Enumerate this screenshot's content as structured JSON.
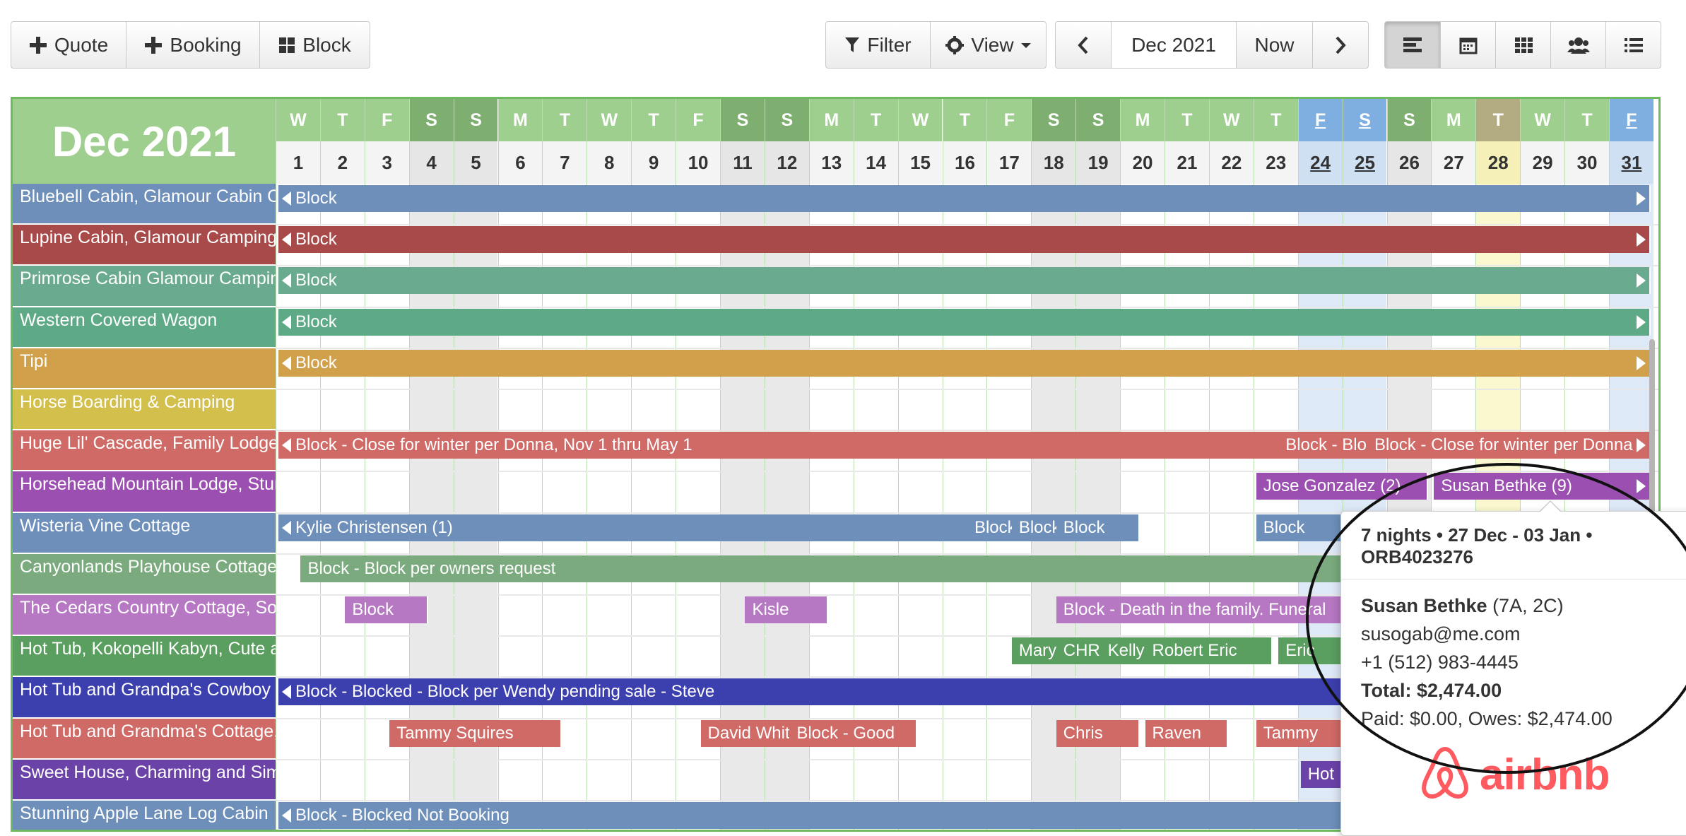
{
  "toolbar": {
    "quote_label": "Quote",
    "booking_label": "Booking",
    "block_label": "Block",
    "filter_label": "Filter",
    "view_label": "View",
    "month_label": "Dec 2021",
    "now_label": "Now"
  },
  "calendar": {
    "month_title": "Dec 2021",
    "days": [
      {
        "dow": "W",
        "num": "1"
      },
      {
        "dow": "T",
        "num": "2"
      },
      {
        "dow": "F",
        "num": "3"
      },
      {
        "dow": "S",
        "num": "4",
        "weekend": true
      },
      {
        "dow": "S",
        "num": "5",
        "weekend": true
      },
      {
        "dow": "M",
        "num": "6"
      },
      {
        "dow": "T",
        "num": "7"
      },
      {
        "dow": "W",
        "num": "8"
      },
      {
        "dow": "T",
        "num": "9"
      },
      {
        "dow": "F",
        "num": "10"
      },
      {
        "dow": "S",
        "num": "11",
        "weekend": true
      },
      {
        "dow": "S",
        "num": "12",
        "weekend": true
      },
      {
        "dow": "M",
        "num": "13"
      },
      {
        "dow": "T",
        "num": "14"
      },
      {
        "dow": "W",
        "num": "15"
      },
      {
        "dow": "T",
        "num": "16"
      },
      {
        "dow": "F",
        "num": "17"
      },
      {
        "dow": "S",
        "num": "18",
        "weekend": true
      },
      {
        "dow": "S",
        "num": "19",
        "weekend": true
      },
      {
        "dow": "M",
        "num": "20"
      },
      {
        "dow": "T",
        "num": "21"
      },
      {
        "dow": "W",
        "num": "22"
      },
      {
        "dow": "T",
        "num": "23"
      },
      {
        "dow": "F",
        "num": "24",
        "holiday": true
      },
      {
        "dow": "S",
        "num": "25",
        "holiday": true
      },
      {
        "dow": "S",
        "num": "26",
        "weekend": true
      },
      {
        "dow": "M",
        "num": "27"
      },
      {
        "dow": "T",
        "num": "28",
        "today": true
      },
      {
        "dow": "W",
        "num": "29"
      },
      {
        "dow": "T",
        "num": "30"
      },
      {
        "dow": "F",
        "num": "31",
        "holiday": true
      }
    ],
    "rows": [
      {
        "name": "Bluebell Cabin, Glamour Cabin Camping",
        "color": "#6d8fb9",
        "bars": [
          {
            "label": "Block",
            "start": 1,
            "end": 31,
            "left_arrow": true,
            "right_arrow": true
          }
        ]
      },
      {
        "name": "Lupine Cabin, Glamour Camping, Sleeps",
        "color": "#a84a4a",
        "bars": [
          {
            "label": "Block",
            "start": 1,
            "end": 31,
            "left_arrow": true,
            "right_arrow": true
          }
        ]
      },
      {
        "name": "Primrose Cabin Glamour Camping, Sleeps",
        "color": "#6aaa8e",
        "bars": [
          {
            "label": "Block",
            "start": 1,
            "end": 31,
            "left_arrow": true,
            "right_arrow": true
          }
        ]
      },
      {
        "name": "Western Covered Wagon",
        "color": "#5ea986",
        "bars": [
          {
            "label": "Block",
            "start": 1,
            "end": 31,
            "left_arrow": true,
            "right_arrow": true
          }
        ]
      },
      {
        "name": "Tipi",
        "color": "#d1a04a",
        "bars": [
          {
            "label": "Block",
            "start": 1,
            "end": 31,
            "left_arrow": true,
            "right_arrow": true
          }
        ]
      },
      {
        "name": "Horse Boarding & Camping",
        "color": "#d3bf4c",
        "bars": []
      },
      {
        "name": "Huge Lil' Cascade, Family Lodge, Sleeps",
        "color": "#cf6a66",
        "bars": [
          {
            "label": "Block - Close for winter per Donna, Nov 1 thru May 1",
            "start": 1,
            "end": 23.5,
            "left_arrow": true
          },
          {
            "label": "Block - Block",
            "start": 23.5,
            "end": 25.5
          },
          {
            "label": "Block - Close for winter per Donna",
            "start": 25.5,
            "end": 31,
            "right_arrow": true
          }
        ]
      },
      {
        "name": "Horsehead Mountain Lodge, Stunning",
        "color": "#9b4fb0",
        "bars": [
          {
            "label": "Jose Gonzalez (2)",
            "start": 23,
            "end": 26
          },
          {
            "label": "Susan Bethke (9)",
            "start": 27,
            "end": 31,
            "right_arrow": true
          }
        ]
      },
      {
        "name": "Wisteria Vine Cottage",
        "color": "#6d8fb9",
        "bars": [
          {
            "label": "Kylie Christensen (1)",
            "start": 1,
            "end": 16.5,
            "left_arrow": true
          },
          {
            "label": "Block",
            "start": 16.5,
            "end": 17.5
          },
          {
            "label": "Block",
            "start": 17.5,
            "end": 18.5
          },
          {
            "label": "Block",
            "start": 18.5,
            "end": 19.5
          },
          {
            "label": "Block",
            "start": 23,
            "end": 24.5
          }
        ]
      },
      {
        "name": "Canyonlands Playhouse Cottage, Sleeps",
        "color": "#7aaa7e",
        "bars": [
          {
            "label": "Block - Block per owners request",
            "start": 1.5,
            "end": 24.5
          }
        ]
      },
      {
        "name": "The Cedars Country Cottage, Solitude",
        "color": "#b678c2",
        "bars": [
          {
            "label": "Block",
            "start": 2.5,
            "end": 3.5
          },
          {
            "label": "Kisle",
            "start": 11.5,
            "end": 12.5
          },
          {
            "label": "Block - Death in the family. Funeral",
            "start": 18.5,
            "end": 24.5
          }
        ]
      },
      {
        "name": "Hot Tub, Kokopelli Kabyn, Cute and Cozy",
        "color": "#5a9e60",
        "bars": [
          {
            "label": "Mary",
            "start": 17.5,
            "end": 18.5
          },
          {
            "label": "CHR",
            "start": 18.5,
            "end": 19.5
          },
          {
            "label": "Kelly",
            "start": 19.5,
            "end": 20.5
          },
          {
            "label": "Robert Eric",
            "start": 20.5,
            "end": 22.5
          },
          {
            "label": "Eric",
            "start": 23.5,
            "end": 24.5
          }
        ]
      },
      {
        "name": "Hot Tub and Grandpa's Cowboy Cabin",
        "color": "#3c3fae",
        "bars": [
          {
            "label": "Block - Blocked - Block per Wendy pending sale - Steve",
            "start": 1,
            "end": 24.5,
            "left_arrow": true
          }
        ]
      },
      {
        "name": "Hot Tub and Grandma's Cottage, Sleeps",
        "color": "#cf6a66",
        "bars": [
          {
            "label": "Tammy Squires",
            "start": 3.5,
            "end": 6.5
          },
          {
            "label": "David White",
            "start": 10.5,
            "end": 12.5
          },
          {
            "label": "Block - Good",
            "start": 12.5,
            "end": 14.5
          },
          {
            "label": "Chris",
            "start": 18.5,
            "end": 19.5
          },
          {
            "label": "Raven",
            "start": 20.5,
            "end": 21.5
          },
          {
            "label": "Tammy",
            "start": 23,
            "end": 24.5
          }
        ]
      },
      {
        "name": "Sweet House, Charming and Simple",
        "color": "#6a42a8",
        "bars": [
          {
            "label": "Hot",
            "start": 24,
            "end": 24.5
          }
        ]
      },
      {
        "name": "Stunning Apple Lane Log Cabin",
        "color": "#6d8fb9",
        "bars": [
          {
            "label": "Block - Blocked Not Booking",
            "start": 1,
            "end": 24.5,
            "left_arrow": true
          }
        ]
      }
    ]
  },
  "popover": {
    "title": "7 nights • 27 Dec - 03 Jan • ORB4023276",
    "guest_name": "Susan Bethke",
    "guest_party": " (7A, 2C)",
    "email": "susogab@me.com",
    "phone": "+1 (512) 983-4445",
    "total": "Total: $2,474.00",
    "paid": "Paid: $0.00, Owes: $2,474.00",
    "source": "airbnb"
  },
  "colors": {
    "header_green": "#9fcf8f",
    "weekend_green": "#7eaf70",
    "holiday_blue": "#7faee0",
    "today_olive": "#b3ac82",
    "airbnb": "#ff5a5f"
  }
}
